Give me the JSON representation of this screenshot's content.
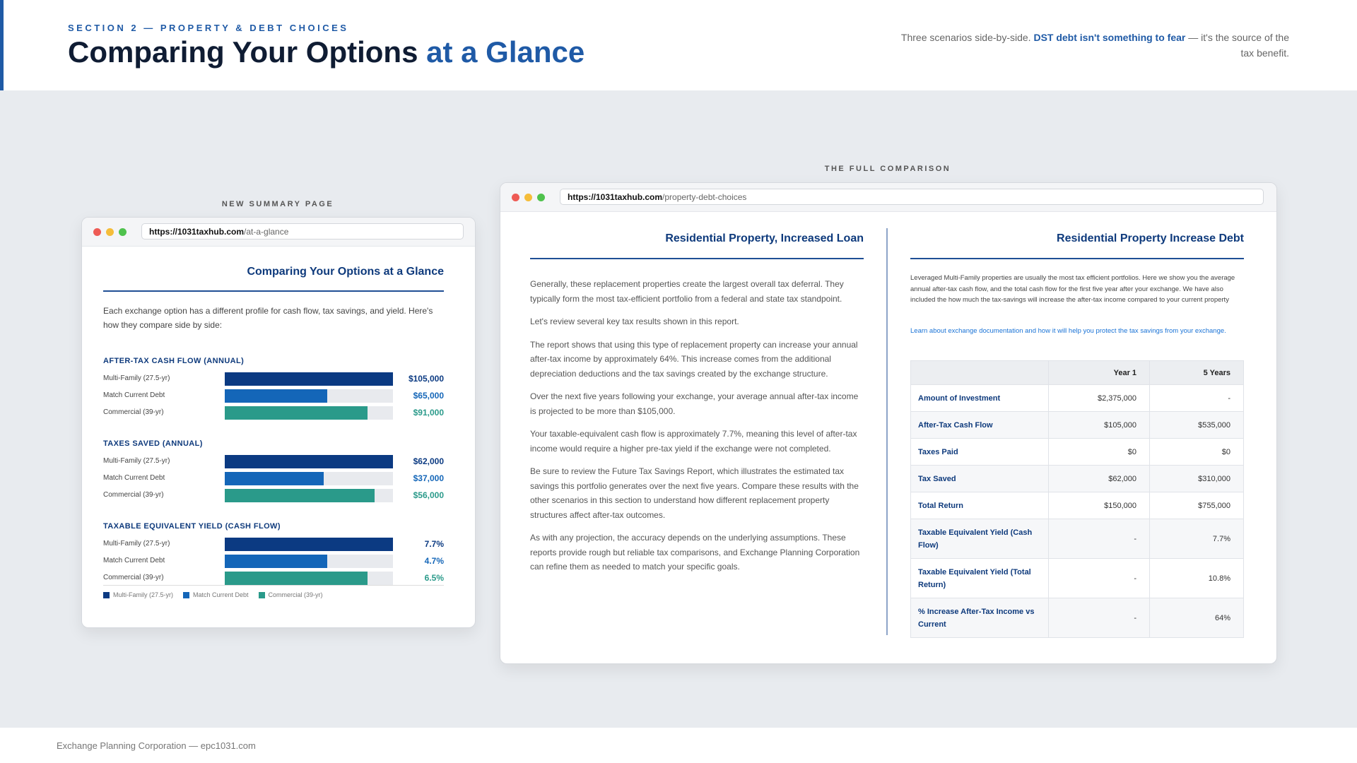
{
  "header": {
    "kicker": "SECTION 2 — PROPERTY & DEBT CHOICES",
    "title_main": "Comparing Your Options",
    "title_highlight": "at a Glance",
    "intro_pre": "Three scenarios side-by-side.",
    "intro_bold": "DST debt isn't something to fear",
    "intro_post": "— it's the source of the tax benefit."
  },
  "colors": {
    "multi_family": "#0b3a82",
    "match_current_debt": "#1466b8",
    "commercial": "#2a9a8a",
    "accent": "#1f5aa6"
  },
  "summary": {
    "caption": "NEW SUMMARY PAGE",
    "url_domain": "https://1031taxhub.com",
    "url_path": "/at-a-glance",
    "title": "Comparing Your Options at a Glance",
    "intro": "Each exchange option has a different profile for cash flow, tax savings, and yield. Here's how they compare side by side:",
    "groups": [
      {
        "title": "AFTER-TAX CASH FLOW (ANNUAL)",
        "rows": [
          {
            "label": "Multi-Family (27.5-yr)",
            "value": "$105,000",
            "fraction": 1.0,
            "series": "multi_family"
          },
          {
            "label": "Match Current Debt",
            "value": "$65,000",
            "fraction": 0.61,
            "series": "match_current_debt"
          },
          {
            "label": "Commercial (39-yr)",
            "value": "$91,000",
            "fraction": 0.85,
            "series": "commercial"
          }
        ]
      },
      {
        "title": "TAXES SAVED (ANNUAL)",
        "rows": [
          {
            "label": "Multi-Family (27.5-yr)",
            "value": "$62,000",
            "fraction": 1.0,
            "series": "multi_family"
          },
          {
            "label": "Match Current Debt",
            "value": "$37,000",
            "fraction": 0.59,
            "series": "match_current_debt"
          },
          {
            "label": "Commercial (39-yr)",
            "value": "$56,000",
            "fraction": 0.89,
            "series": "commercial"
          }
        ]
      },
      {
        "title": "TAXABLE EQUIVALENT YIELD (CASH FLOW)",
        "rows": [
          {
            "label": "Multi-Family (27.5-yr)",
            "value": "7.7%",
            "fraction": 1.0,
            "series": "multi_family"
          },
          {
            "label": "Match Current Debt",
            "value": "4.7%",
            "fraction": 0.61,
            "series": "match_current_debt"
          },
          {
            "label": "Commercial (39-yr)",
            "value": "6.5%",
            "fraction": 0.85,
            "series": "commercial"
          }
        ]
      }
    ],
    "legend": [
      "Multi-Family (27.5-yr)",
      "Match Current Debt",
      "Commercial (39-yr)"
    ]
  },
  "full": {
    "caption": "THE FULL COMPARISON",
    "url_domain": "https://1031taxhub.com",
    "url_path": "/property-debt-choices",
    "left_title": "Residential Property, Increased Loan",
    "paragraphs": [
      "Generally, these replacement properties create the largest overall tax deferral. They typically form the most tax-efficient portfolio from a federal and state tax standpoint.",
      "Let's review several key tax results shown in this report.",
      "The report shows that using this type of replacement property can increase your annual after-tax income by approximately 64%. This increase comes from the additional depreciation deductions and the tax savings created by the exchange structure.",
      "Over the next five years following your exchange, your average annual after-tax income is projected to be more than $105,000.",
      "Your taxable-equivalent cash flow is approximately 7.7%, meaning this level of after-tax income would require a higher pre-tax yield if the exchange were not completed.",
      "Be sure to review the Future Tax Savings Report, which illustrates the estimated tax savings this portfolio generates over the next five years. Compare these results with the other scenarios in this section to understand how different replacement property structures affect after-tax outcomes.",
      "As with any projection, the accuracy depends on the underlying assumptions. These reports provide rough but reliable tax comparisons, and Exchange Planning Corporation can refine them as needed to match your specific goals."
    ],
    "right_title": "Residential Property Increase Debt",
    "right_intro": "Leveraged Multi-Family properties are usually the most tax efficient portfolios. Here we show you the average annual after-tax cash flow, and the total cash flow for the first five year after your exchange. We have also included the how much the tax-savings will increase the after-tax income compared to your current property",
    "right_link": "Learn about exchange documentation and how it will help you protect the tax savings from your exchange.",
    "table": {
      "headers": [
        "",
        "Year 1",
        "5 Years"
      ],
      "rows": [
        {
          "label": "Amount of Investment",
          "y1": "$2,375,000",
          "y5": "-"
        },
        {
          "label": "After-Tax Cash Flow",
          "y1": "$105,000",
          "y5": "$535,000"
        },
        {
          "label": "Taxes Paid",
          "y1": "$0",
          "y5": "$0"
        },
        {
          "label": "Tax Saved",
          "y1": "$62,000",
          "y5": "$310,000"
        },
        {
          "label": "Total Return",
          "y1": "$150,000",
          "y5": "$755,000"
        },
        {
          "label": "Taxable Equivalent Yield (Cash Flow)",
          "y1": "-",
          "y5": "7.7%"
        },
        {
          "label": "Taxable Equivalent Yield (Total Return)",
          "y1": "-",
          "y5": "10.8%"
        },
        {
          "label": "% Increase After-Tax Income vs Current",
          "y1": "-",
          "y5": "64%"
        }
      ]
    }
  },
  "footer": {
    "text": "Exchange Planning Corporation — epc1031.com"
  }
}
